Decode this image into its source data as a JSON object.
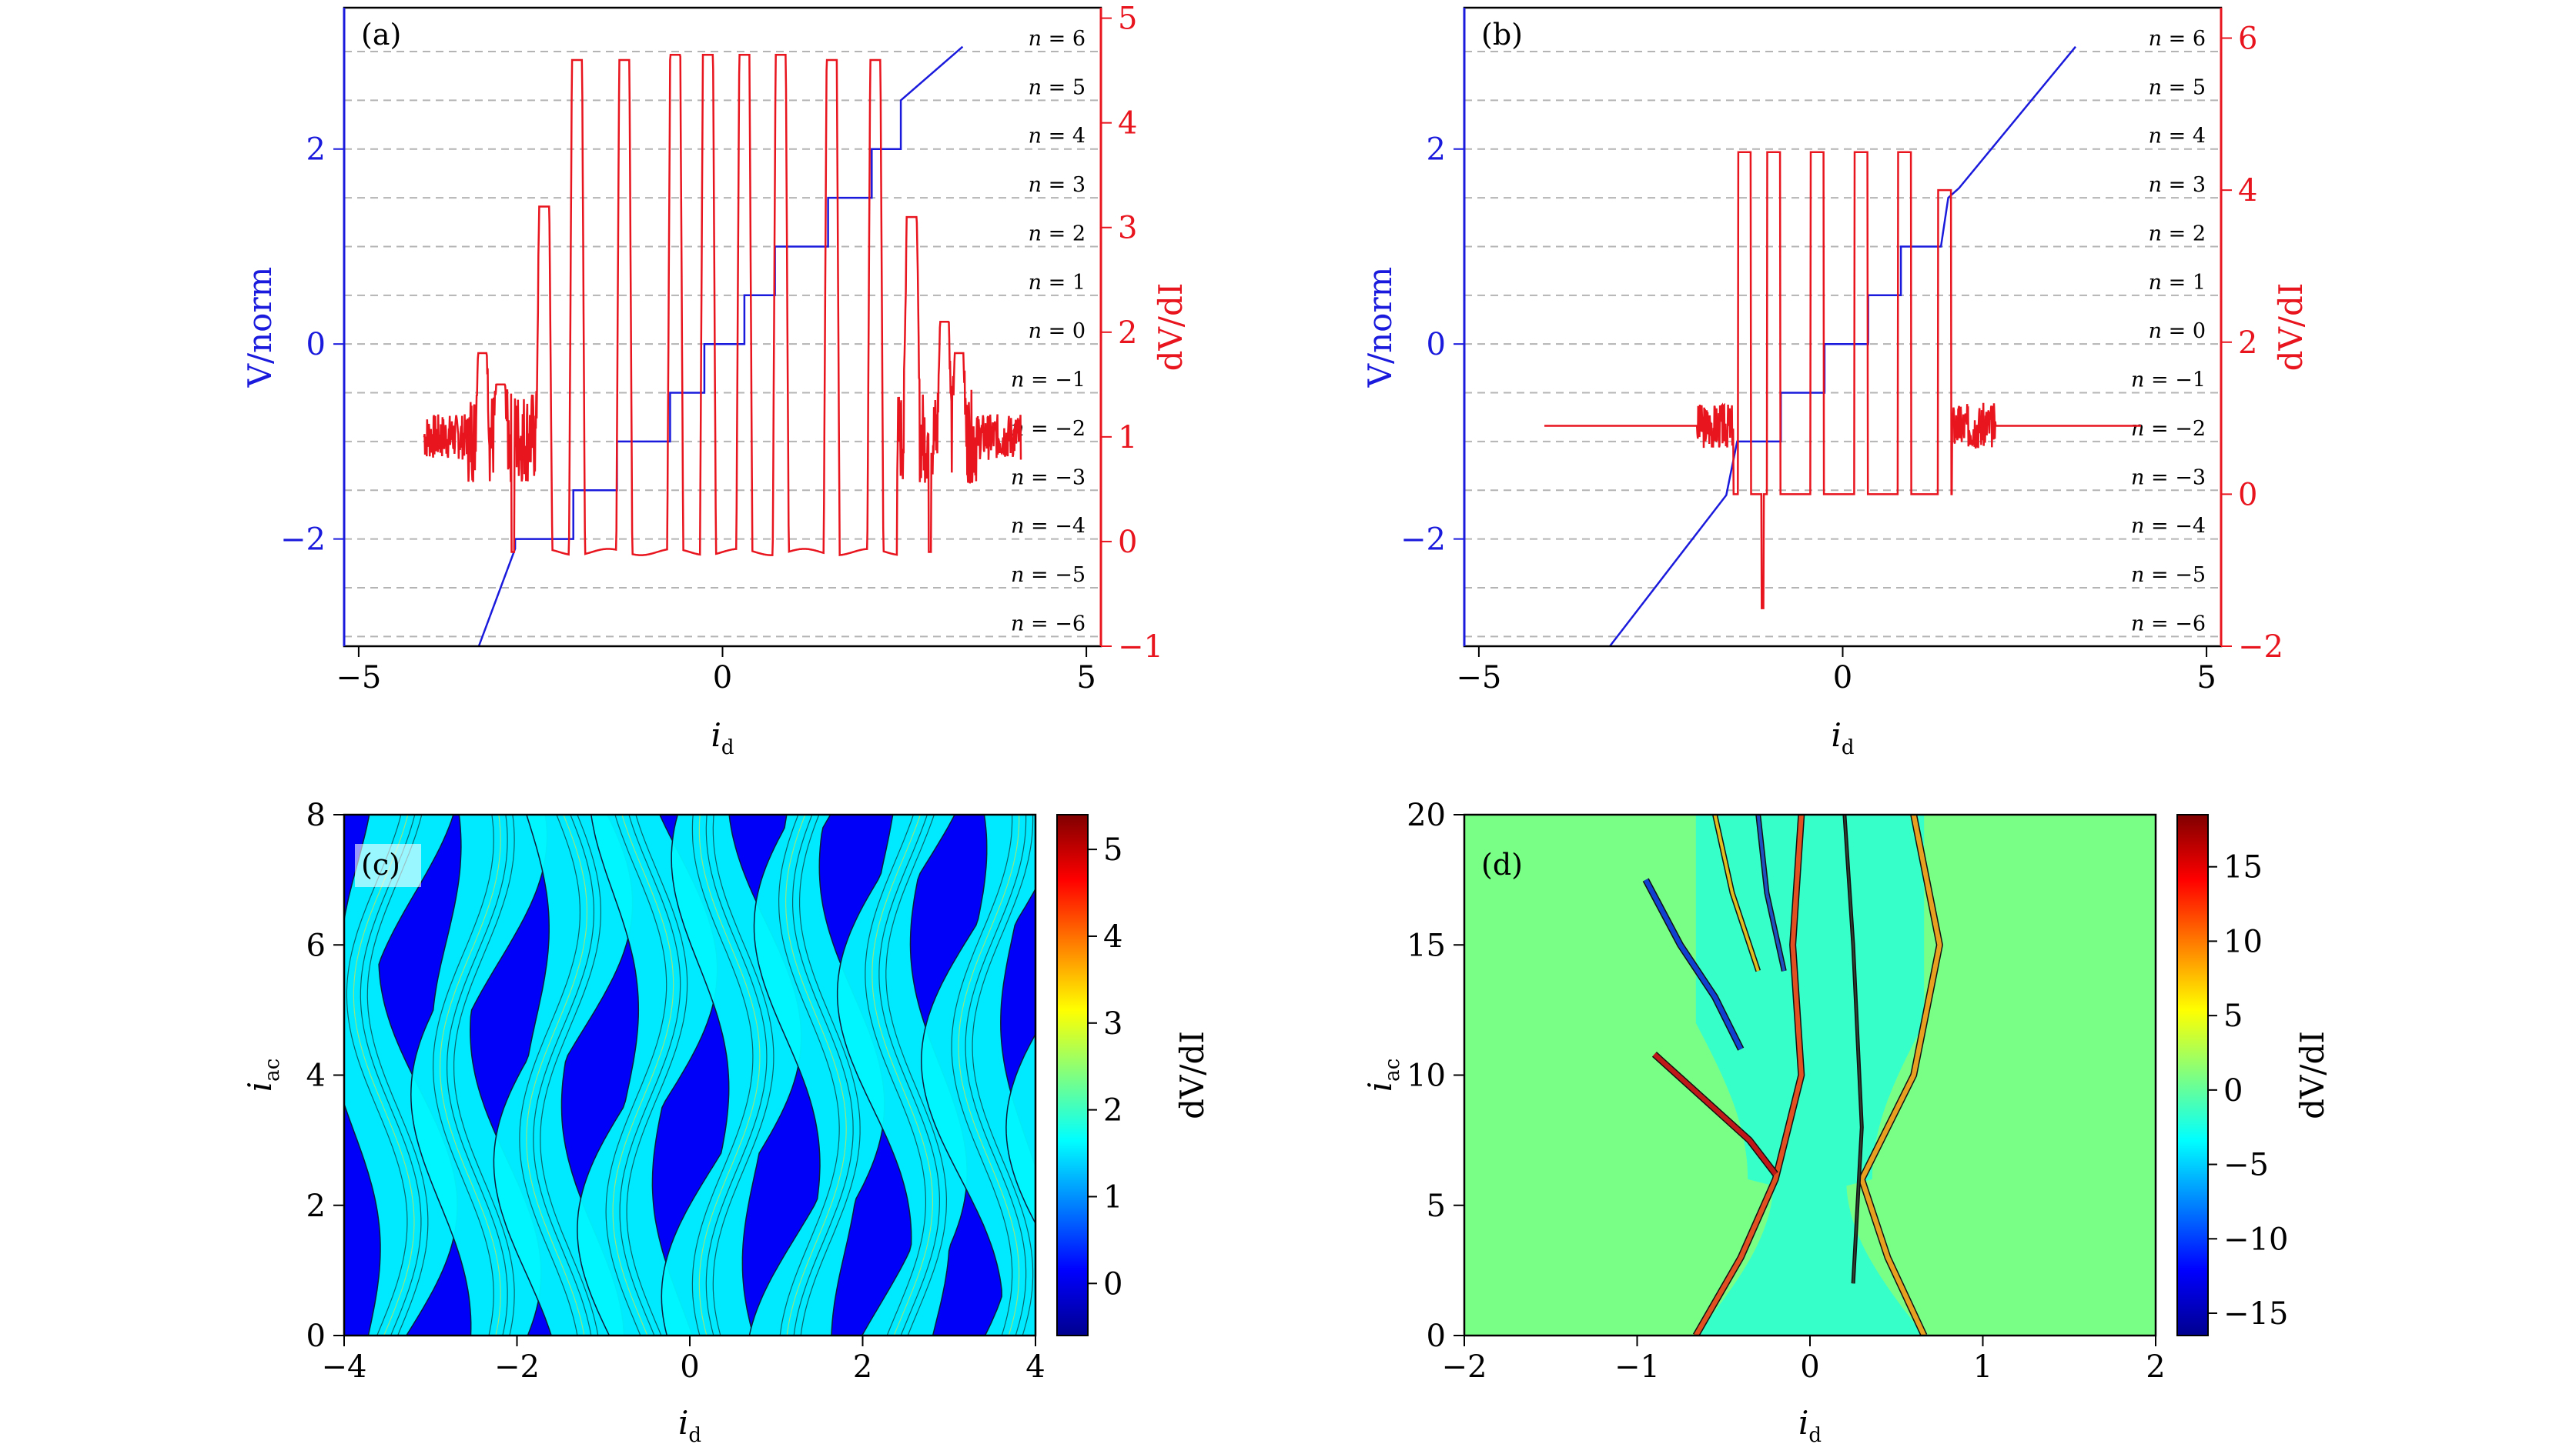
{
  "colors": {
    "voltage": "#1a1adc",
    "dvdi": "#e8141e",
    "nline": "#b4b4b4",
    "axis": "#000000",
    "cmap": [
      "#00008f",
      "#0000ff",
      "#0080ff",
      "#00ffff",
      "#80ff80",
      "#ffff00",
      "#ff8000",
      "#ff0000",
      "#800000"
    ]
  },
  "chart_data": [
    {
      "type": "line",
      "panel_label": "(a)",
      "x_label": "i",
      "x_label_sub": "d",
      "y_left_label": "V/norm",
      "y_right_label": "dV/dI",
      "xlim": [
        -5.2,
        5.2
      ],
      "xticks": [
        -5,
        0,
        5
      ],
      "ylim_left": [
        -3.1,
        3.45
      ],
      "yticks_left": [
        -2,
        0,
        2
      ],
      "ylim_right": [
        -1,
        5.1
      ],
      "yticks_right": [
        -1,
        0,
        1,
        2,
        3,
        4,
        5
      ],
      "n_levels": [
        6,
        5,
        4,
        3,
        2,
        1,
        0,
        -1,
        -2,
        -3,
        -4,
        -5,
        -6
      ],
      "n_values": [
        3,
        2.5,
        2,
        1.5,
        1,
        0.5,
        0,
        -0.5,
        -1,
        -1.5,
        -2,
        -2.5,
        -3
      ],
      "n_prefix": "n =",
      "series": [
        {
          "axis": "left",
          "x": [
            -3.35,
            -2.85,
            -2.85,
            -2.05,
            -2.05,
            -1.45,
            -1.45,
            -0.72,
            -0.72,
            -0.25,
            -0.25,
            0.3,
            0.3,
            0.72,
            0.72,
            1.45,
            1.45,
            2.05,
            2.05,
            2.45,
            2.45,
            3.3
          ],
          "y": [
            -3.1,
            -2.1,
            -2.0,
            -2.0,
            -1.5,
            -1.5,
            -1.0,
            -1.0,
            -0.5,
            -0.5,
            0.0,
            0.0,
            0.5,
            0.5,
            1.0,
            1.0,
            1.5,
            1.5,
            2.0,
            2.0,
            2.5,
            3.05
          ]
        },
        {
          "axis": "right",
          "baseline": 0.0,
          "noise_regions": [
            [
              -4.1,
              -2.4,
              1.0
            ],
            [
              2.4,
              4.1,
              1.0
            ]
          ],
          "peaks": [
            {
              "x": -3.3,
              "y": 1.8
            },
            {
              "x": -3.05,
              "y": 1.5
            },
            {
              "x": -2.45,
              "y": 3.2
            },
            {
              "x": -2.0,
              "y": 4.6
            },
            {
              "x": -1.35,
              "y": 4.6
            },
            {
              "x": -0.65,
              "y": 4.65
            },
            {
              "x": -0.2,
              "y": 4.65
            },
            {
              "x": 0.3,
              "y": 4.65
            },
            {
              "x": 0.8,
              "y": 4.65
            },
            {
              "x": 1.5,
              "y": 4.6
            },
            {
              "x": 2.1,
              "y": 4.6
            },
            {
              "x": 2.6,
              "y": 3.1
            },
            {
              "x": 3.05,
              "y": 2.1
            },
            {
              "x": 3.25,
              "y": 1.8
            }
          ]
        }
      ]
    },
    {
      "type": "line",
      "panel_label": "(b)",
      "x_label": "i",
      "x_label_sub": "d",
      "y_left_label": "V/norm",
      "y_right_label": "dV/dI",
      "xlim": [
        -5.2,
        5.2
      ],
      "xticks": [
        -5,
        0,
        5
      ],
      "ylim_left": [
        -3.1,
        3.45
      ],
      "yticks_left": [
        -2,
        0,
        2
      ],
      "ylim_right": [
        -2,
        6.4
      ],
      "yticks_right": [
        -2,
        0,
        2,
        4,
        6
      ],
      "n_levels": [
        6,
        5,
        4,
        3,
        2,
        1,
        0,
        -1,
        -2,
        -3,
        -4,
        -5,
        -6
      ],
      "n_values": [
        3,
        2.5,
        2,
        1.5,
        1,
        0.5,
        0,
        -0.5,
        -1,
        -1.5,
        -2,
        -2.5,
        -3
      ],
      "n_prefix": "n =",
      "series": [
        {
          "axis": "left",
          "x": [
            -3.2,
            -1.6,
            -1.45,
            -1.45,
            -0.85,
            -0.85,
            -0.25,
            -0.25,
            0.35,
            0.35,
            0.8,
            0.8,
            1.35,
            1.45,
            1.6,
            3.2
          ],
          "y": [
            -3.1,
            -1.55,
            -1.0,
            -1.0,
            -1.0,
            -0.5,
            -0.5,
            0.0,
            0.0,
            0.5,
            0.5,
            1.0,
            1.0,
            1.5,
            1.6,
            3.05
          ]
        },
        {
          "axis": "right",
          "baseline": 0.9,
          "xrange": [
            -4.1,
            4.1
          ],
          "low_level": 0.0,
          "high_level": 4.5,
          "peaks": [
            {
              "x": -1.35,
              "y": 4.5
            },
            {
              "x": -0.95,
              "y": 4.5
            },
            {
              "x": -0.35,
              "y": 4.5
            },
            {
              "x": 0.25,
              "y": 4.5
            },
            {
              "x": 0.85,
              "y": 4.5
            },
            {
              "x": 1.4,
              "y": 4.0
            }
          ],
          "dip": {
            "x": -1.1,
            "y": -1.5
          }
        }
      ]
    },
    {
      "type": "heatmap",
      "panel_label": "(c)",
      "x_label": "i",
      "x_label_sub": "d",
      "y_label": "i",
      "y_label_sub": "ac",
      "xlim": [
        -4,
        4
      ],
      "xticks": [
        -4,
        -2,
        0,
        2,
        4
      ],
      "ylim": [
        0,
        8
      ],
      "yticks": [
        0,
        2,
        4,
        6,
        8
      ],
      "colorbar_label": "dV/dI",
      "colorbar_range": [
        -0.6,
        5.4
      ],
      "colorbar_ticks": [
        0,
        1,
        2,
        3,
        4,
        5
      ],
      "lobe_centers": [
        -4,
        -3,
        -2,
        -1,
        0,
        1,
        2,
        3,
        4
      ]
    },
    {
      "type": "heatmap",
      "panel_label": "(d)",
      "x_label": "i",
      "x_label_sub": "d",
      "y_label": "i",
      "y_label_sub": "ac",
      "xlim": [
        -2,
        2
      ],
      "xticks": [
        -2,
        -1,
        0,
        1,
        2
      ],
      "ylim": [
        0,
        20
      ],
      "yticks": [
        0,
        5,
        10,
        15,
        20
      ],
      "colorbar_label": "dV/dI",
      "colorbar_range": [
        -16.5,
        18.5
      ],
      "colorbar_ticks": [
        -15,
        -10,
        -5,
        0,
        5,
        10,
        15
      ]
    }
  ]
}
